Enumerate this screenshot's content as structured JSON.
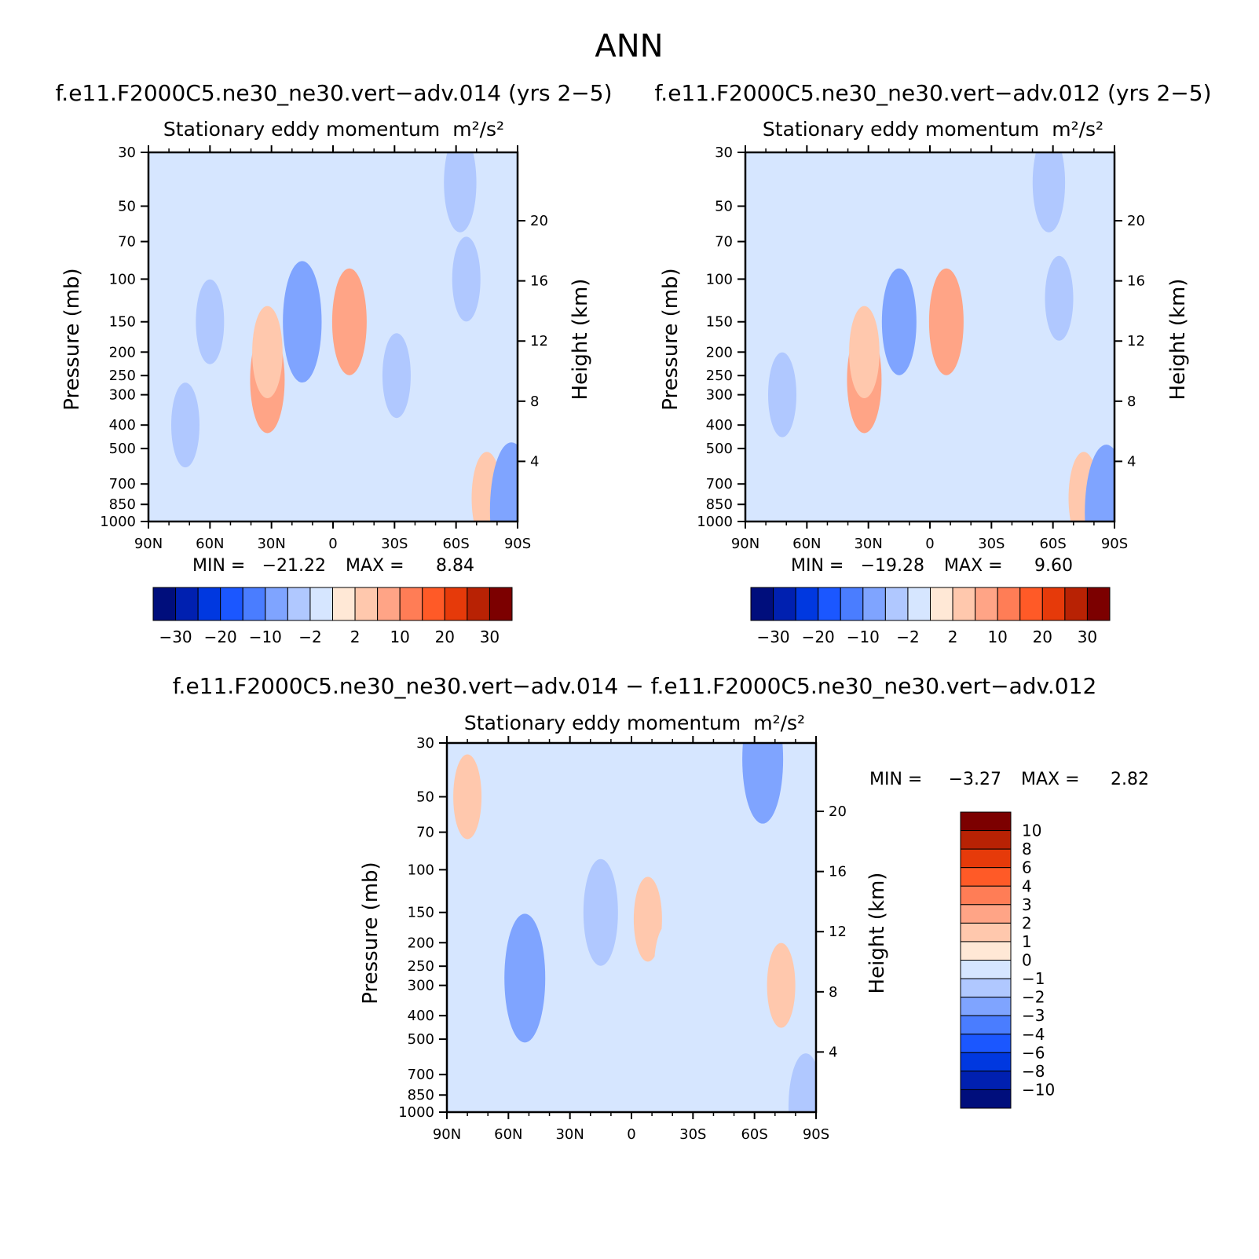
{
  "figure_title": "ANN",
  "colors": {
    "neg": [
      "#000e7c",
      "#0020b0",
      "#0038e0",
      "#1b57ff",
      "#4a7dff",
      "#7fa4ff",
      "#b0c8ff",
      "#d6e6ff"
    ],
    "pos": [
      "#ffe8d6",
      "#ffc8ad",
      "#ffa486",
      "#ff7d56",
      "#ff5a27",
      "#e63a0a",
      "#b82204",
      "#7c0000"
    ]
  },
  "chart_data": [
    {
      "type": "heatmap",
      "title": "f.e11.F2000C5.ne30_ne30.vert−adv.014 (yrs 2−5)",
      "subtitle": "Stationary eddy momentum",
      "units": "m²/s²",
      "xlabel": "",
      "ylabel": "Pressure (mb)",
      "ylabel_right": "Height (km)",
      "x_ticks": [
        "90N",
        "60N",
        "30N",
        "0",
        "30S",
        "60S",
        "90S"
      ],
      "y_ticks": [
        "30",
        "50",
        "70",
        "100",
        "150",
        "200",
        "250",
        "300",
        "400",
        "500",
        "700",
        "850",
        "1000"
      ],
      "y_ticks_right": [
        "4",
        "8",
        "12",
        "16",
        "20"
      ],
      "xlim": [
        90,
        -90
      ],
      "ylim": [
        1000,
        30
      ],
      "y_scale": "log",
      "stats": {
        "min_label": "MIN =",
        "min": "−21.22",
        "max_label": "MAX =",
        "max": "8.84"
      },
      "features": [
        {
          "lat": 72,
          "p": 400,
          "value": -3
        },
        {
          "lat": 60,
          "p": 150,
          "value": -3
        },
        {
          "lat": 32,
          "p": 260,
          "value": 6
        },
        {
          "lat": 32,
          "p": 200,
          "value": 4
        },
        {
          "lat": 15,
          "p": 150,
          "value": -8
        },
        {
          "lat": -8,
          "p": 150,
          "value": 6
        },
        {
          "lat": -31,
          "p": 250,
          "value": -3
        },
        {
          "lat": -62,
          "p": 40,
          "value": -5
        },
        {
          "lat": -65,
          "p": 100,
          "value": -3
        },
        {
          "lat": -75,
          "p": 800,
          "value": 4
        },
        {
          "lat": -87,
          "p": 900,
          "value": -10
        }
      ],
      "colorbar": {
        "orientation": "horizontal",
        "levels": [
          -30,
          -25,
          -20,
          -15,
          -10,
          -5,
          -2,
          0,
          2,
          5,
          10,
          15,
          20,
          25,
          30
        ],
        "labels": [
          "−30",
          "−20",
          "−10",
          "−2",
          "2",
          "10",
          "20",
          "30"
        ]
      }
    },
    {
      "type": "heatmap",
      "title": "f.e11.F2000C5.ne30_ne30.vert−adv.012 (yrs 2−5)",
      "subtitle": "Stationary eddy momentum",
      "units": "m²/s²",
      "xlabel": "",
      "ylabel": "Pressure (mb)",
      "ylabel_right": "Height (km)",
      "x_ticks": [
        "90N",
        "60N",
        "30N",
        "0",
        "30S",
        "60S",
        "90S"
      ],
      "y_ticks": [
        "30",
        "50",
        "70",
        "100",
        "150",
        "200",
        "250",
        "300",
        "400",
        "500",
        "700",
        "850",
        "1000"
      ],
      "y_ticks_right": [
        "4",
        "8",
        "12",
        "16",
        "20"
      ],
      "xlim": [
        90,
        -90
      ],
      "ylim": [
        1000,
        30
      ],
      "y_scale": "log",
      "stats": {
        "min_label": "MIN =",
        "min": "−19.28",
        "max_label": "MAX =",
        "max": "9.60"
      },
      "features": [
        {
          "lat": 72,
          "p": 300,
          "value": -3
        },
        {
          "lat": 32,
          "p": 260,
          "value": 6
        },
        {
          "lat": 32,
          "p": 200,
          "value": 4
        },
        {
          "lat": 15,
          "p": 150,
          "value": -6
        },
        {
          "lat": -8,
          "p": 150,
          "value": 6
        },
        {
          "lat": -30,
          "p": 250,
          "value": -2
        },
        {
          "lat": -58,
          "p": 40,
          "value": -5
        },
        {
          "lat": -63,
          "p": 120,
          "value": -3
        },
        {
          "lat": -75,
          "p": 800,
          "value": 4
        },
        {
          "lat": -86,
          "p": 920,
          "value": -10
        }
      ],
      "colorbar": {
        "orientation": "horizontal",
        "levels": [
          -30,
          -25,
          -20,
          -15,
          -10,
          -5,
          -2,
          0,
          2,
          5,
          10,
          15,
          20,
          25,
          30
        ],
        "labels": [
          "−30",
          "−20",
          "−10",
          "−2",
          "2",
          "10",
          "20",
          "30"
        ]
      }
    },
    {
      "type": "heatmap",
      "title": "f.e11.F2000C5.ne30_ne30.vert−adv.014 − f.e11.F2000C5.ne30_ne30.vert−adv.012",
      "subtitle": "Stationary eddy momentum",
      "units": "m²/s²",
      "xlabel": "",
      "ylabel": "Pressure (mb)",
      "ylabel_right": "Height (km)",
      "x_ticks": [
        "90N",
        "60N",
        "30N",
        "0",
        "30S",
        "60S",
        "90S"
      ],
      "y_ticks": [
        "30",
        "50",
        "70",
        "100",
        "150",
        "200",
        "250",
        "300",
        "400",
        "500",
        "700",
        "850",
        "1000"
      ],
      "y_ticks_right": [
        "4",
        "8",
        "12",
        "16",
        "20"
      ],
      "xlim": [
        90,
        -90
      ],
      "ylim": [
        1000,
        30
      ],
      "y_scale": "log",
      "stats": {
        "min_label": "MIN =",
        "min": "−3.27",
        "max_label": "MAX =",
        "max": "2.82"
      },
      "features": [
        {
          "lat": 80,
          "p": 50,
          "value": 1
        },
        {
          "lat": 51,
          "p": 300,
          "value": -2
        },
        {
          "lat": 52,
          "p": 280,
          "value": -3
        },
        {
          "lat": 15,
          "p": 150,
          "value": -2
        },
        {
          "lat": -8,
          "p": 160,
          "value": 1
        },
        {
          "lat": -18,
          "p": 250,
          "value": -1
        },
        {
          "lat": -64,
          "p": 35,
          "value": -3
        },
        {
          "lat": -73,
          "p": 300,
          "value": 1
        },
        {
          "lat": -85,
          "p": 950,
          "value": -2
        }
      ],
      "colorbar": {
        "orientation": "vertical",
        "levels": [
          -10,
          -8,
          -6,
          -4,
          -3,
          -2,
          -1,
          0,
          1,
          2,
          3,
          4,
          6,
          8,
          10
        ],
        "labels": [
          "10",
          "8",
          "6",
          "4",
          "3",
          "2",
          "1",
          "0",
          "−1",
          "−2",
          "−3",
          "−4",
          "−6",
          "−8",
          "−10"
        ]
      }
    }
  ]
}
